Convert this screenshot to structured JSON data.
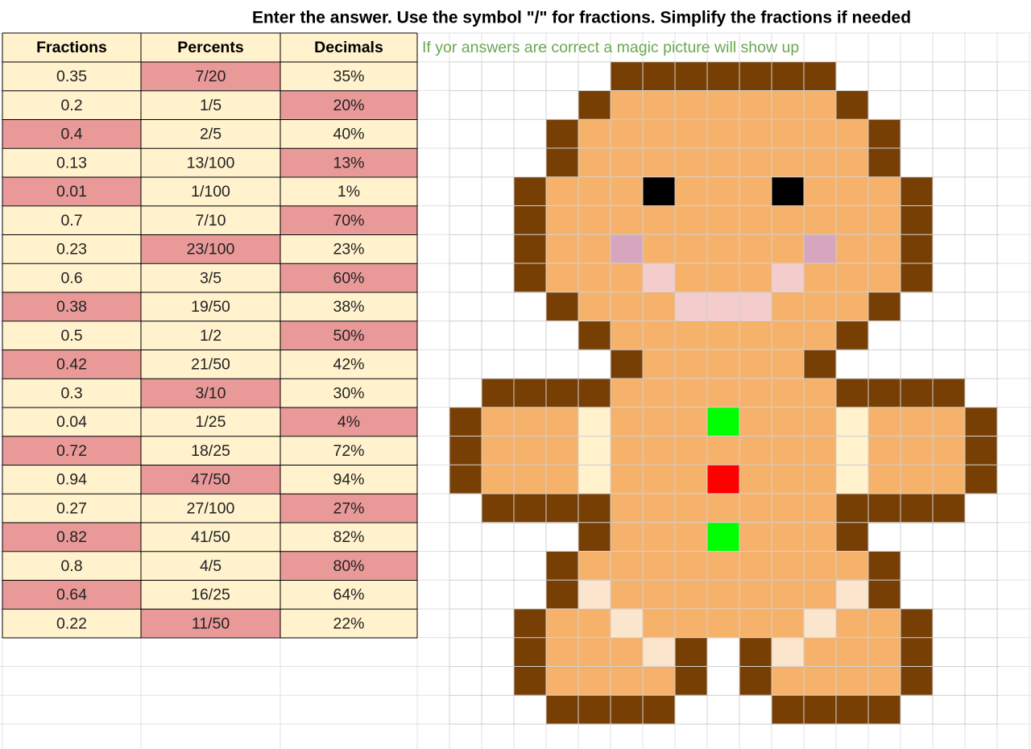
{
  "title": "Enter the answer. Use the symbol \"/\" for fractions. Simplify the fractions if needed",
  "note": "If yor answers are correct a magic picture will show up",
  "table": {
    "columns": [
      "Fractions",
      "Percents",
      "Decimals"
    ],
    "rows": [
      [
        "0.35",
        "7/20",
        "35%"
      ],
      [
        "0.2",
        "1/5",
        "20%"
      ],
      [
        "0.4",
        "2/5",
        "40%"
      ],
      [
        "0.13",
        "13/100",
        "13%"
      ],
      [
        "0.01",
        "1/100",
        "1%"
      ],
      [
        "0.7",
        "7/10",
        "70%"
      ],
      [
        "0.23",
        "23/100",
        "23%"
      ],
      [
        "0.6",
        "3/5",
        "60%"
      ],
      [
        "0.38",
        "19/50",
        "38%"
      ],
      [
        "0.5",
        "1/2",
        "50%"
      ],
      [
        "0.42",
        "21/50",
        "42%"
      ],
      [
        "0.3",
        "3/10",
        "30%"
      ],
      [
        "0.04",
        "1/25",
        "4%"
      ],
      [
        "0.72",
        "18/25",
        "72%"
      ],
      [
        "0.94",
        "47/50",
        "94%"
      ],
      [
        "0.27",
        "27/100",
        "27%"
      ],
      [
        "0.82",
        "41/50",
        "82%"
      ],
      [
        "0.8",
        "4/5",
        "80%"
      ],
      [
        "0.64",
        "16/25",
        "64%"
      ],
      [
        "0.22",
        "11/50",
        "22%"
      ]
    ]
  }
}
